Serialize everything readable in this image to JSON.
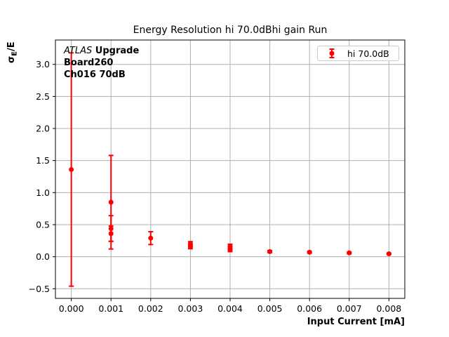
{
  "title": "Energy Resolution hi 70.0dBhi gain Run",
  "axes": {
    "xlabel": "Input Current [mA]",
    "ylabel": {
      "sigma": "σ",
      "subscript": "E",
      "suffix": "/E"
    }
  },
  "annotation": {
    "experiment": "ATLAS",
    "experiment_suffix": " Upgrade",
    "line2": "Board260",
    "line3": "Ch016 70dB"
  },
  "legend": {
    "entries": [
      {
        "label": "hi 70.0dB",
        "color": "#ff0000"
      }
    ]
  },
  "colors": {
    "series": "#ff0000",
    "grid": "#b0b0b0",
    "spine": "#000000",
    "text": "#000000",
    "legend_border": "#cccccc",
    "background": "#ffffff"
  },
  "chart_data": {
    "type": "scatter",
    "title": "Energy Resolution hi 70.0dBhi gain Run",
    "xlabel": "Input Current [mA]",
    "ylabel": "σ_E/E",
    "grid": true,
    "legend_position": "upper right",
    "xlim": [
      -0.0004,
      0.0084
    ],
    "ylim": [
      -0.65,
      3.38
    ],
    "xticks": {
      "values": [
        0.0,
        0.001,
        0.002,
        0.003,
        0.004,
        0.005,
        0.006,
        0.007,
        0.008
      ],
      "labels": [
        "0.000",
        "0.001",
        "0.002",
        "0.003",
        "0.004",
        "0.005",
        "0.006",
        "0.007",
        "0.008"
      ]
    },
    "yticks": {
      "values": [
        -0.5,
        0.0,
        0.5,
        1.0,
        1.5,
        2.0,
        2.5,
        3.0
      ],
      "labels": [
        "−0.5",
        "0.0",
        "0.5",
        "1.0",
        "1.5",
        "2.0",
        "2.5",
        "3.0"
      ]
    },
    "series": [
      {
        "name": "hi 70.0dB",
        "color": "#ff0000",
        "marker": "circle",
        "points": [
          {
            "x": 0.0,
            "y": 1.36,
            "yerr": 1.82
          },
          {
            "x": 0.001,
            "y": 0.85,
            "yerr": 0.73
          },
          {
            "x": 0.001,
            "y": 0.44,
            "yerr": 0.2
          },
          {
            "x": 0.001,
            "y": 0.36,
            "yerr": 0.12
          },
          {
            "x": 0.002,
            "y": 0.29,
            "yerr": 0.1
          },
          {
            "x": 0.003,
            "y": 0.2,
            "yerr": 0.035
          },
          {
            "x": 0.003,
            "y": 0.155,
            "yerr": 0.03
          },
          {
            "x": 0.004,
            "y": 0.16,
            "yerr": 0.035
          },
          {
            "x": 0.004,
            "y": 0.105,
            "yerr": 0.025
          },
          {
            "x": 0.005,
            "y": 0.08,
            "yerr": 0.015
          },
          {
            "x": 0.006,
            "y": 0.07,
            "yerr": 0.012
          },
          {
            "x": 0.007,
            "y": 0.06,
            "yerr": 0.012
          },
          {
            "x": 0.008,
            "y": 0.045,
            "yerr": 0.01
          }
        ]
      }
    ]
  }
}
